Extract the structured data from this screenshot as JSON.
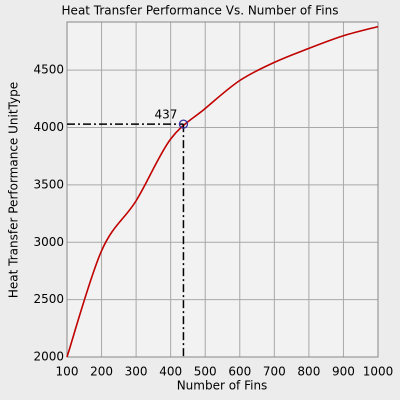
{
  "chart_data": {
    "type": "line",
    "title": "Heat Transfer Performance Vs. Number of Fins",
    "x_label": "Number of Fins",
    "y_label": "Heat Transfer Performance UnitType",
    "x": [
      100,
      200,
      300,
      400,
      500,
      600,
      700,
      800,
      900,
      1000
    ],
    "series": [
      {
        "name": "Heat Transfer Performance",
        "color": "#c00000",
        "values": [
          2000,
          2926,
          3362,
          3900,
          4166,
          4410,
          4568,
          4690,
          4800,
          4880
        ]
      }
    ],
    "xlim": [
      100,
      1000
    ],
    "xticks": [
      100,
      200,
      300,
      400,
      500,
      600,
      700,
      800,
      900,
      1000
    ],
    "ylim": [
      2000,
      4920
    ],
    "yticks": [
      2000,
      2500,
      3000,
      3500,
      4000,
      4500
    ],
    "grid": true,
    "marker": {
      "x": 437,
      "y": 4030,
      "label": "437"
    }
  }
}
